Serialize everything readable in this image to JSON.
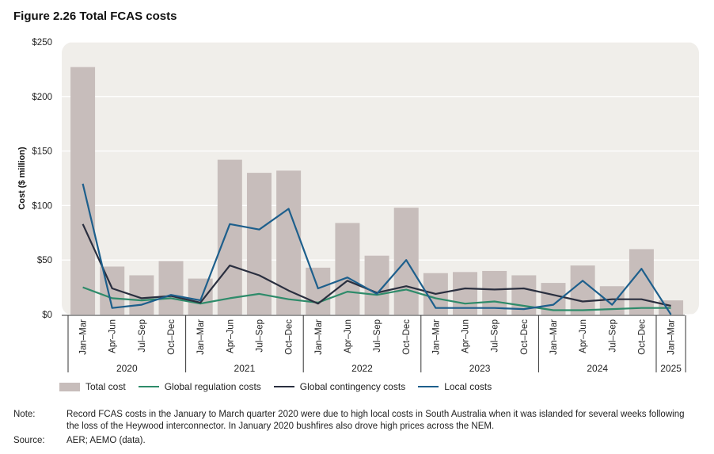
{
  "figure_title": "Figure 2.26 Total FCAS costs",
  "note_label": "Note:",
  "note_text": "Record FCAS costs in the January to March quarter 2020 were due to high local costs in South Australia when it was islanded for several weeks following the loss of the Heywood interconnector. In January 2020 bushfires also drove high prices across the NEM.",
  "source_label": "Source:",
  "source_text": "AER; AEMO (data).",
  "colors": {
    "total": "#c7bdbb",
    "regulation": "#2e8b6a",
    "contingency": "#2a2f3f",
    "local": "#1d5f8c",
    "plot_bg": "#f0eeea"
  },
  "chart_data": {
    "type": "bar",
    "ylabel": "Cost ($ million)",
    "ylim": [
      0,
      250
    ],
    "yticks": [
      0,
      50,
      100,
      150,
      200,
      250
    ],
    "ytick_labels": [
      "$0",
      "$50",
      "$100",
      "$150",
      "$200",
      "$250"
    ],
    "grid": true,
    "legend_position": "bottom",
    "categories": [
      "Jan–Mar",
      "Apr–Jun",
      "Jul–Sep",
      "Oct–Dec",
      "Jan–Mar",
      "Apr–Jun",
      "Jul–Sep",
      "Oct–Dec",
      "Jan–Mar",
      "Apr–Jun",
      "Jul–Sep",
      "Oct–Dec",
      "Jan–Mar",
      "Apr–Jun",
      "Jul–Sep",
      "Oct–Dec",
      "Jan–Mar",
      "Apr–Jun",
      "Jul–Sep",
      "Oct–Dec",
      "Jan–Mar"
    ],
    "year_groups": [
      {
        "label": "2020",
        "count": 4
      },
      {
        "label": "2021",
        "count": 4
      },
      {
        "label": "2022",
        "count": 4
      },
      {
        "label": "2023",
        "count": 4
      },
      {
        "label": "2024",
        "count": 4
      },
      {
        "label": "2025",
        "count": 1
      }
    ],
    "series": [
      {
        "name": "Total cost",
        "type": "bar",
        "values": [
          227,
          44,
          36,
          49,
          33,
          142,
          130,
          132,
          43,
          84,
          54,
          98,
          38,
          39,
          40,
          36,
          29,
          45,
          26,
          60,
          13
        ]
      },
      {
        "name": "Global regulation costs",
        "type": "line",
        "values": [
          25,
          15,
          13,
          15,
          10,
          15,
          19,
          14,
          11,
          21,
          18,
          23,
          15,
          10,
          12,
          8,
          4,
          4,
          5,
          6,
          6
        ]
      },
      {
        "name": "Global contingency costs",
        "type": "line",
        "values": [
          83,
          24,
          15,
          17,
          11,
          45,
          36,
          22,
          10,
          31,
          20,
          26,
          19,
          24,
          23,
          24,
          18,
          12,
          14,
          14,
          8
        ]
      },
      {
        "name": "Local costs",
        "type": "line",
        "values": [
          120,
          6,
          9,
          18,
          13,
          83,
          78,
          97,
          24,
          34,
          19,
          50,
          6,
          6,
          6,
          5,
          9,
          31,
          9,
          42,
          0
        ]
      }
    ]
  }
}
